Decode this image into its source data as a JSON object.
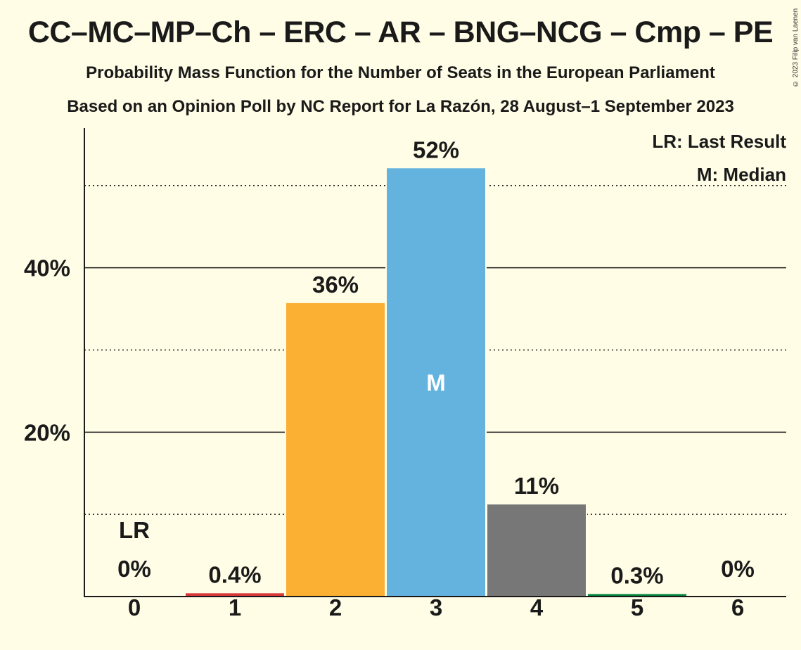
{
  "title": "CC–MC–MP–Ch – ERC – AR – BNG–NCG – Cmp – PE",
  "subtitle1": "Probability Mass Function for the Number of Seats in the European Parliament",
  "subtitle2": "Based on an Opinion Poll by NC Report for La Razón, 28 August–1 September 2023",
  "copyright": "© 2023 Filip van Laenen",
  "legend": {
    "last_result": "LR: Last Result",
    "median": "M: Median"
  },
  "markers": {
    "median_symbol": "M",
    "last_result_symbol": "LR"
  },
  "chart_data": {
    "type": "bar",
    "categories": [
      "0",
      "1",
      "2",
      "3",
      "4",
      "5",
      "6"
    ],
    "values": [
      0,
      0.4,
      35.7,
      52.1,
      11.2,
      0.3,
      0
    ],
    "labels": [
      "0%",
      "0.4%",
      "36%",
      "52%",
      "11%",
      "0.3%",
      "0%"
    ],
    "colors": [
      "#E3000F",
      "#D9383A",
      "#FBAF33",
      "#63B3DE",
      "#777777",
      "#00843D",
      "#999999"
    ],
    "ylim": [
      0,
      57
    ],
    "yticks": [
      20,
      40
    ],
    "ytick_labels": [
      "20%",
      "40%"
    ],
    "dotted_gridlines": [
      10,
      30,
      50
    ],
    "median_index": 3,
    "last_result_index": 0,
    "xlabel": "",
    "ylabel": "",
    "grid": true,
    "legend_position": "top-right"
  }
}
